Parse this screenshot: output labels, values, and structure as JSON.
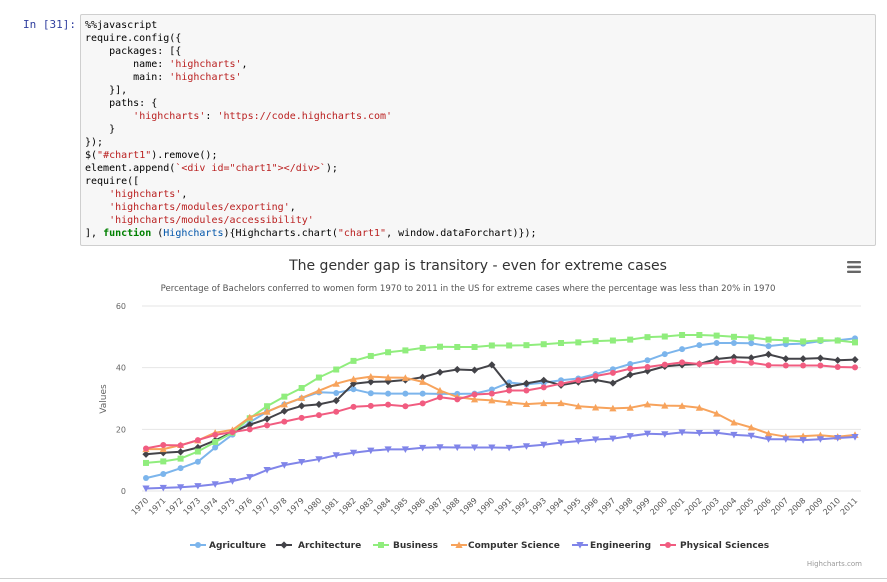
{
  "cell": {
    "prompt": "In [31]:",
    "code": {
      "line1": "%%javascript",
      "line2": "require.config({",
      "line3": "    packages: [{",
      "line4_pre": "        name: ",
      "line4_str": "'highcharts'",
      "line4_post": ",",
      "line5_pre": "        main: ",
      "line5_str": "'highcharts'",
      "line6": "    }],",
      "line7": "    paths: {",
      "line8_pre": "        ",
      "line8_key": "'highcharts'",
      "line8_mid": ": ",
      "line8_val": "'https://code.highcharts.com'",
      "line9": "    }",
      "line10": "});",
      "line11_pre": "$(",
      "line11_str": "\"#chart1\"",
      "line11_post": ").remove();",
      "line12_pre": "element.append(",
      "line12_str": "`<div id=\"chart1\"></div>`",
      "line12_post": ");",
      "line13": "require([",
      "line14_pre": "    ",
      "line14_str": "'highcharts'",
      "line14_post": ",",
      "line15_pre": "    ",
      "line15_str": "'highcharts/modules/exporting'",
      "line15_post": ",",
      "line16_pre": "    ",
      "line16_str": "'highcharts/modules/accessibility'",
      "line17_pre": "], ",
      "line17_kw": "function",
      "line17_mid": " (",
      "line17_param": "Highcharts",
      "line17_mid2": "){Highcharts.chart(",
      "line17_str": "\"chart1\"",
      "line17_post": ", window.dataForchart)});"
    }
  },
  "credits": "Highcharts.com",
  "menu_icon": "hamburger-menu-icon",
  "colors": [
    "#7cb5ec",
    "#434348",
    "#90ed7d",
    "#f7a35c",
    "#8085e9",
    "#f15c80"
  ],
  "chart_data": {
    "type": "line",
    "title": "The gender gap is transitory - even for extreme cases",
    "subtitle": "Percentage of Bachelors conferred to women form 1970 to 2011 in the US for extreme cases where the percentage was less than 20% in 1970",
    "xlabel": "",
    "ylabel": "Values",
    "ylim": [
      0,
      60
    ],
    "yticks": [
      0,
      20,
      40,
      60
    ],
    "grid": true,
    "legend": "bottom-center",
    "x": [
      "1970",
      "1971",
      "1972",
      "1973",
      "1974",
      "1975",
      "1976",
      "1977",
      "1978",
      "1979",
      "1980",
      "1981",
      "1982",
      "1983",
      "1984",
      "1985",
      "1986",
      "1987",
      "1988",
      "1989",
      "1990",
      "1991",
      "1992",
      "1993",
      "1994",
      "1995",
      "1996",
      "1997",
      "1998",
      "1999",
      "2000",
      "2001",
      "2002",
      "2003",
      "2004",
      "2005",
      "2006",
      "2007",
      "2008",
      "2009",
      "2010",
      "2011"
    ],
    "series": [
      {
        "name": "Agriculture",
        "marker": "circle",
        "values": [
          4.2,
          5.5,
          7.4,
          9.5,
          14.1,
          18.3,
          22.3,
          25.7,
          28.1,
          30.1,
          32.0,
          31.8,
          33.0,
          31.7,
          31.6,
          31.6,
          31.6,
          31.5,
          31.5,
          31.6,
          32.9,
          35.2,
          34.6,
          35.1,
          35.9,
          36.5,
          37.9,
          39.5,
          41.2,
          42.4,
          44.4,
          46.0,
          47.3,
          48.0,
          48.0,
          47.9,
          47.0,
          47.6,
          47.8,
          48.6,
          48.9,
          49.5
        ]
      },
      {
        "name": "Architecture",
        "marker": "diamond",
        "values": [
          11.9,
          12.4,
          12.7,
          14.1,
          16.4,
          19.1,
          21.5,
          23.4,
          25.9,
          27.6,
          28.1,
          29.3,
          34.8,
          35.4,
          35.5,
          36.0,
          36.9,
          38.5,
          39.4,
          39.2,
          40.9,
          33.9,
          34.9,
          35.9,
          34.3,
          35.3,
          36.0,
          35.0,
          37.7,
          38.9,
          40.4,
          40.9,
          41.2,
          42.8,
          43.4,
          43.2,
          44.3,
          42.9,
          42.9,
          43.1,
          42.4,
          42.6
        ]
      },
      {
        "name": "Business",
        "marker": "square",
        "values": [
          9.1,
          9.6,
          10.5,
          12.8,
          15.9,
          18.9,
          23.6,
          27.5,
          30.6,
          33.4,
          36.8,
          39.4,
          42.2,
          43.8,
          45.0,
          45.6,
          46.4,
          46.8,
          46.7,
          46.7,
          47.2,
          47.2,
          47.3,
          47.6,
          48.0,
          48.2,
          48.6,
          48.8,
          49.1,
          49.9,
          50.1,
          50.6,
          50.6,
          50.4,
          50.0,
          49.8,
          49.1,
          48.9,
          48.5,
          48.9,
          48.8,
          48.2
        ]
      },
      {
        "name": "Computer Science",
        "marker": "triangle",
        "values": [
          13.6,
          13.6,
          14.9,
          16.4,
          18.9,
          19.8,
          23.9,
          25.7,
          28.1,
          30.2,
          32.5,
          34.8,
          36.3,
          37.1,
          36.8,
          36.7,
          35.4,
          32.6,
          30.5,
          29.7,
          29.4,
          28.7,
          28.2,
          28.5,
          28.5,
          27.5,
          27.1,
          26.8,
          27.0,
          28.1,
          27.7,
          27.6,
          27.0,
          25.1,
          22.2,
          20.6,
          18.6,
          17.6,
          17.8,
          18.1,
          17.6,
          18.2
        ]
      },
      {
        "name": "Engineering",
        "marker": "triangle-down",
        "values": [
          0.8,
          1.0,
          1.2,
          1.6,
          2.2,
          3.2,
          4.5,
          6.8,
          8.4,
          9.4,
          10.3,
          11.6,
          12.4,
          13.1,
          13.5,
          13.5,
          14.0,
          14.2,
          14.1,
          14.1,
          14.1,
          14.0,
          14.5,
          15.0,
          15.7,
          16.2,
          16.7,
          17.0,
          17.8,
          18.6,
          18.4,
          19.0,
          18.8,
          18.9,
          18.2,
          17.9,
          16.8,
          16.8,
          16.5,
          16.8,
          17.2,
          17.5
        ]
      },
      {
        "name": "Physical Sciences",
        "marker": "circle",
        "values": [
          13.8,
          14.9,
          14.8,
          16.5,
          18.2,
          19.1,
          20.0,
          21.3,
          22.5,
          23.7,
          24.6,
          25.7,
          27.3,
          27.6,
          28.0,
          27.5,
          28.4,
          30.4,
          29.7,
          31.3,
          31.6,
          32.6,
          32.6,
          33.6,
          34.8,
          35.9,
          37.3,
          38.3,
          39.7,
          40.2,
          41.0,
          41.7,
          41.2,
          41.7,
          42.1,
          41.6,
          40.8,
          40.7,
          40.7,
          40.7,
          40.2,
          40.1
        ]
      }
    ]
  }
}
